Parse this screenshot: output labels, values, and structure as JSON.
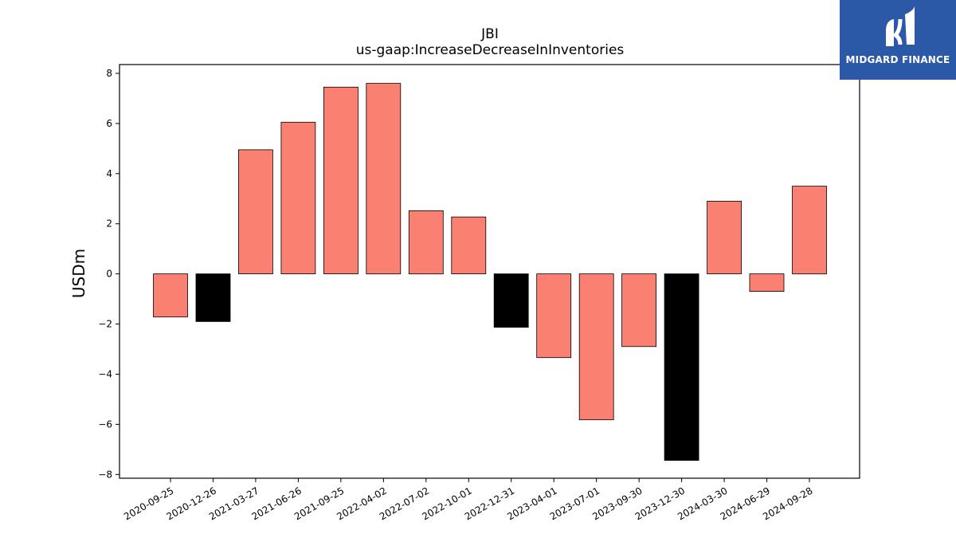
{
  "chart_data": {
    "type": "bar",
    "title": "JBI",
    "subtitle": "us-gaap:IncreaseDecreaseInInventories",
    "xlabel": "",
    "ylabel": "USDm",
    "ylim": [
      -8.15,
      8.35
    ],
    "yticks": [
      -8,
      -6,
      -4,
      -2,
      0,
      2,
      4,
      6,
      8
    ],
    "ytick_labels": [
      "−8",
      "−6",
      "−4",
      "−2",
      "0",
      "2",
      "4",
      "6",
      "8"
    ],
    "grid": false,
    "categories": [
      "2020-09-25",
      "2020-12-26",
      "2021-03-27",
      "2021-06-26",
      "2021-09-25",
      "2022-04-02",
      "2022-07-02",
      "2022-10-01",
      "2022-12-31",
      "2023-04-01",
      "2023-07-01",
      "2023-09-30",
      "2023-12-30",
      "2024-03-30",
      "2024-06-29",
      "2024-09-28"
    ],
    "values": [
      -1.72,
      -1.9,
      4.95,
      6.05,
      7.45,
      7.6,
      2.52,
      2.27,
      -2.13,
      -3.34,
      -5.82,
      -2.9,
      -7.44,
      2.9,
      -0.7,
      3.5
    ],
    "bar_colors": [
      "#fa8072",
      "#000000",
      "#fa8072",
      "#fa8072",
      "#fa8072",
      "#fa8072",
      "#fa8072",
      "#fa8072",
      "#000000",
      "#fa8072",
      "#fa8072",
      "#fa8072",
      "#000000",
      "#fa8072",
      "#fa8072",
      "#fa8072"
    ]
  },
  "logo": {
    "text": "MIDGARD FINANCE",
    "background": "#2b59a8"
  }
}
